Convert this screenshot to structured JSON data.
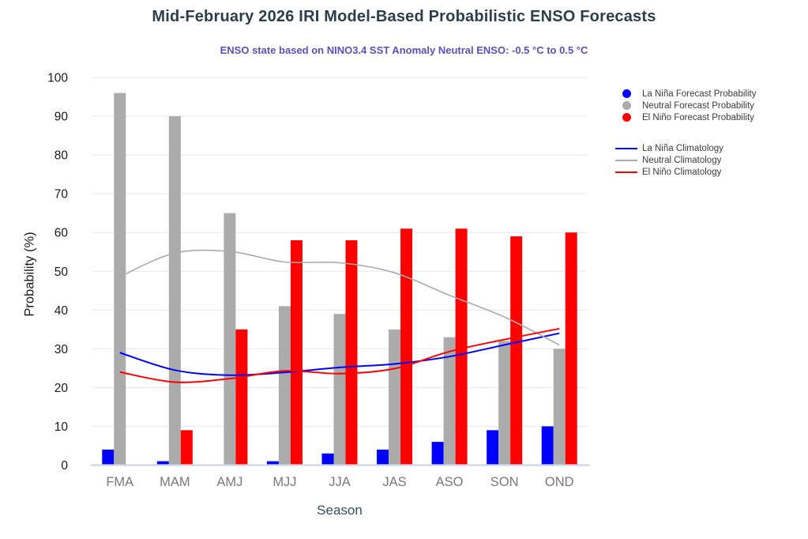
{
  "page": {
    "title": "Mid-February 2026 IRI Model-Based Probabilistic ENSO Forecasts",
    "subtitle": "ENSO state based on NINO3.4 SST Anomaly Neutral ENSO: -0.5 °C to 0.5 °C"
  },
  "colors": {
    "la_nina": "#0000ff",
    "neutral": "#ababab",
    "el_nino": "#ff0000",
    "neutral_line": "#aaaaaa",
    "title": "#2b3e4b",
    "subtitle": "#5a4fc0",
    "grid": "#ebebeb",
    "axis_line": "#ccd6ea",
    "x_tick": "#787878",
    "y_tick": "#1a1a1a",
    "x_axis_title": "#33505e"
  },
  "legend": {
    "forecast_items": [
      {
        "label": "La Niña Forecast Probability",
        "color_key": "la_nina"
      },
      {
        "label": "Neutral Forecast Probability",
        "color_key": "neutral"
      },
      {
        "label": "El Niño Forecast Probability",
        "color_key": "el_nino"
      }
    ],
    "climatology_items": [
      {
        "label": "La Niña Climatology",
        "color_key": "la_nina"
      },
      {
        "label": "Neutral Climatology",
        "color_key": "neutral_line"
      },
      {
        "label": "El Niño Climatology",
        "color_key": "el_nino"
      }
    ]
  },
  "chart_data": {
    "type": "bar+line",
    "title": "Mid-February 2026 IRI Model-Based Probabilistic ENSO Forecasts",
    "subtitle": "ENSO state based on NINO3.4 SST Anomaly Neutral ENSO: -0.5 °C to 0.5 °C",
    "categories": [
      "FMA",
      "MAM",
      "AMJ",
      "MJJ",
      "JJA",
      "JAS",
      "ASO",
      "SON",
      "OND"
    ],
    "bar_series": [
      {
        "name": "La Niña Forecast Probability",
        "color_key": "la_nina",
        "values": [
          4,
          1,
          0,
          1,
          3,
          4,
          6,
          9,
          10
        ]
      },
      {
        "name": "Neutral Forecast Probability",
        "color_key": "neutral",
        "values": [
          96,
          90,
          65,
          41,
          39,
          35,
          33,
          32,
          30
        ]
      },
      {
        "name": "El Niño Forecast Probability",
        "color_key": "el_nino",
        "values": [
          0,
          9,
          35,
          58,
          58,
          61,
          61,
          59,
          60
        ]
      }
    ],
    "line_series": [
      {
        "name": "La Niña Climatology",
        "color_key": "la_nina",
        "width": 2,
        "values": [
          29,
          24.5,
          23.2,
          23.9,
          25.2,
          26.1,
          28,
          31,
          34
        ]
      },
      {
        "name": "Neutral Climatology",
        "color_key": "neutral_line",
        "width": 1.6,
        "values": [
          48.6,
          54.7,
          55.1,
          52.4,
          52.2,
          49.6,
          43.8,
          38.2,
          31
        ]
      },
      {
        "name": "El Niño Climatology",
        "color_key": "el_nino",
        "width": 2,
        "values": [
          24,
          21.4,
          22.3,
          24.3,
          23.6,
          24.9,
          29.3,
          32.4,
          35.2
        ]
      }
    ],
    "xlabel": "Season",
    "ylabel": "Probability (%)",
    "ylim": [
      0,
      100
    ],
    "yticks": [
      0,
      10,
      20,
      30,
      40,
      50,
      60,
      70,
      80,
      90,
      100
    ],
    "grid": "horizontal",
    "legend_position": "right"
  }
}
